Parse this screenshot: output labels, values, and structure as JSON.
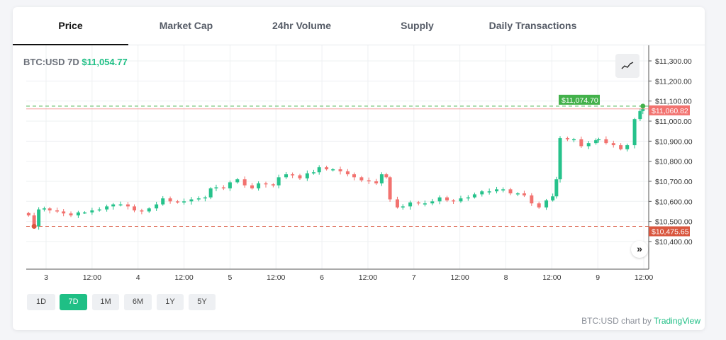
{
  "tabs": [
    {
      "label": "Price",
      "active": true
    },
    {
      "label": "Market Cap"
    },
    {
      "label": "24hr Volume"
    },
    {
      "label": "Supply"
    },
    {
      "label": "Daily Transactions"
    }
  ],
  "legend": {
    "symbol": "BTC:USD 7D",
    "price": "$11,054.77"
  },
  "ranges": [
    {
      "label": "1D"
    },
    {
      "label": "7D",
      "active": true
    },
    {
      "label": "1M"
    },
    {
      "label": "6M"
    },
    {
      "label": "1Y"
    },
    {
      "label": "5Y"
    }
  ],
  "footer": {
    "prefix": "BTC:USD chart by",
    "brand": "TradingView"
  },
  "icons": {
    "chart_style": "line-chart-icon",
    "scroll": "double-chevron-right-icon"
  },
  "colors": {
    "up": "#26c28b",
    "down": "#f2726f",
    "accent": "#1fbf85"
  },
  "chart_data": {
    "type": "candlestick",
    "title": "",
    "ylim": [
      10340,
      11350
    ],
    "xlim": [
      2.78,
      9.55
    ],
    "y_ticks": [
      "$11,300.00",
      "$11,200.00",
      "$11,100.00",
      "$11,000.00",
      "$10,900.00",
      "$10,800.00",
      "$10,700.00",
      "$10,600.00",
      "$10,500.00",
      "$10,400.00"
    ],
    "y_tick_values": [
      11300,
      11200,
      11100,
      11000,
      10900,
      10800,
      10700,
      10600,
      10500,
      10400
    ],
    "x_ticks": [
      {
        "label": "3",
        "day": 3
      },
      {
        "label": "12:00",
        "day": 3.5
      },
      {
        "label": "4",
        "day": 4
      },
      {
        "label": "12:00",
        "day": 4.5
      },
      {
        "label": "5",
        "day": 5
      },
      {
        "label": "12:00",
        "day": 5.5
      },
      {
        "label": "6",
        "day": 6
      },
      {
        "label": "12:00",
        "day": 6.5
      },
      {
        "label": "7",
        "day": 7
      },
      {
        "label": "12:00",
        "day": 7.5
      },
      {
        "label": "8",
        "day": 8
      },
      {
        "label": "12:00",
        "day": 8.5
      },
      {
        "label": "9",
        "day": 9
      },
      {
        "label": "12:00",
        "day": 9.5
      }
    ],
    "grid": true,
    "price_lines": [
      {
        "label": "$11,074.70",
        "value": 11074.7,
        "color": "#43b14b",
        "style": "dashed"
      },
      {
        "label": "$11,060.82",
        "value": 11060.82,
        "color": "#f2726f",
        "style": "solid"
      },
      {
        "label": "$10,475.65",
        "value": 10475.65,
        "color": "#d9573f",
        "style": "dashed"
      }
    ],
    "closes": [
      [
        2.81,
        10530
      ],
      [
        2.87,
        10475
      ],
      [
        2.92,
        10560
      ],
      [
        2.98,
        10565
      ],
      [
        3.04,
        10555
      ],
      [
        3.12,
        10550
      ],
      [
        3.19,
        10540
      ],
      [
        3.27,
        10530
      ],
      [
        3.35,
        10545
      ],
      [
        3.42,
        10545
      ],
      [
        3.5,
        10555
      ],
      [
        3.58,
        10560
      ],
      [
        3.66,
        10575
      ],
      [
        3.73,
        10585
      ],
      [
        3.81,
        10585
      ],
      [
        3.89,
        10575
      ],
      [
        3.96,
        10555
      ],
      [
        4.04,
        10550
      ],
      [
        4.12,
        10565
      ],
      [
        4.2,
        10585
      ],
      [
        4.27,
        10615
      ],
      [
        4.35,
        10600
      ],
      [
        4.43,
        10595
      ],
      [
        4.5,
        10600
      ],
      [
        4.58,
        10610
      ],
      [
        4.66,
        10615
      ],
      [
        4.73,
        10620
      ],
      [
        4.79,
        10665
      ],
      [
        4.85,
        10670
      ],
      [
        4.93,
        10665
      ],
      [
        5.0,
        10695
      ],
      [
        5.08,
        10710
      ],
      [
        5.16,
        10680
      ],
      [
        5.24,
        10665
      ],
      [
        5.31,
        10690
      ],
      [
        5.39,
        10685
      ],
      [
        5.47,
        10680
      ],
      [
        5.53,
        10720
      ],
      [
        5.61,
        10735
      ],
      [
        5.68,
        10730
      ],
      [
        5.76,
        10715
      ],
      [
        5.84,
        10740
      ],
      [
        5.91,
        10745
      ],
      [
        5.97,
        10770
      ],
      [
        6.05,
        10760
      ],
      [
        6.12,
        10760
      ],
      [
        6.2,
        10750
      ],
      [
        6.28,
        10735
      ],
      [
        6.35,
        10720
      ],
      [
        6.43,
        10705
      ],
      [
        6.51,
        10700
      ],
      [
        6.59,
        10690
      ],
      [
        6.65,
        10735
      ],
      [
        6.7,
        10720
      ],
      [
        6.74,
        10610
      ],
      [
        6.82,
        10570
      ],
      [
        6.88,
        10575
      ],
      [
        6.96,
        10595
      ],
      [
        7.05,
        10590
      ],
      [
        7.12,
        10590
      ],
      [
        7.2,
        10600
      ],
      [
        7.28,
        10620
      ],
      [
        7.36,
        10605
      ],
      [
        7.43,
        10600
      ],
      [
        7.51,
        10615
      ],
      [
        7.59,
        10620
      ],
      [
        7.66,
        10635
      ],
      [
        7.74,
        10650
      ],
      [
        7.82,
        10650
      ],
      [
        7.9,
        10660
      ],
      [
        7.97,
        10660
      ],
      [
        8.05,
        10640
      ],
      [
        8.13,
        10640
      ],
      [
        8.2,
        10630
      ],
      [
        8.28,
        10590
      ],
      [
        8.36,
        10570
      ],
      [
        8.44,
        10605
      ],
      [
        8.51,
        10625
      ],
      [
        8.55,
        10710
      ],
      [
        8.59,
        10915
      ],
      [
        8.67,
        10910
      ],
      [
        8.74,
        10910
      ],
      [
        8.82,
        10875
      ],
      [
        8.9,
        10890
      ],
      [
        8.98,
        10905
      ],
      [
        9.01,
        10910
      ],
      [
        9.09,
        10890
      ],
      [
        9.17,
        10880
      ],
      [
        9.25,
        10860
      ],
      [
        9.32,
        10880
      ],
      [
        9.4,
        11010
      ],
      [
        9.46,
        11050
      ],
      [
        9.49,
        11060
      ]
    ]
  }
}
